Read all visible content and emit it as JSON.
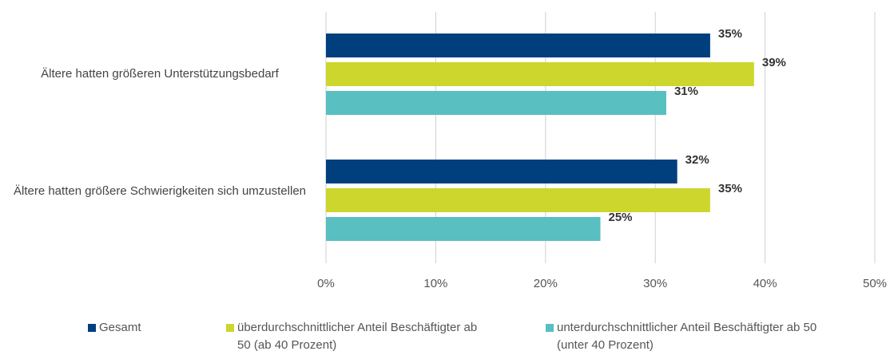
{
  "chart_data": {
    "type": "bar",
    "orientation": "horizontal",
    "categories": [
      "Ältere hatten größeren Unterstützungsbedarf",
      "Ältere hatten größere Schwierigkeiten sich umzustellen"
    ],
    "series": [
      {
        "name": "Gesamt",
        "color": "#003f7d",
        "values": [
          35,
          32
        ],
        "value_labels": [
          "35%",
          "32%"
        ]
      },
      {
        "name": "überdurchschnittlicher Anteil Beschäftigter ab 50 (ab 40 Prozent)",
        "color": "#cdd62c",
        "values": [
          39,
          35
        ],
        "value_labels": [
          "39%",
          "35%"
        ]
      },
      {
        "name": "unterdurchschnittlicher Anteil Beschäftigter ab 50 (unter 40 Prozent)",
        "color": "#59bfc0",
        "values": [
          31,
          25
        ],
        "value_labels": [
          "31%",
          "25%"
        ]
      }
    ],
    "xlim": [
      0,
      50
    ],
    "xticks": [
      {
        "value": 0,
        "label": "0%"
      },
      {
        "value": 10,
        "label": "10%"
      },
      {
        "value": 20,
        "label": "20%"
      },
      {
        "value": 30,
        "label": "30%"
      },
      {
        "value": 40,
        "label": "40%"
      },
      {
        "value": 50,
        "label": "50%"
      }
    ],
    "grid": true,
    "legend": "bottom"
  }
}
